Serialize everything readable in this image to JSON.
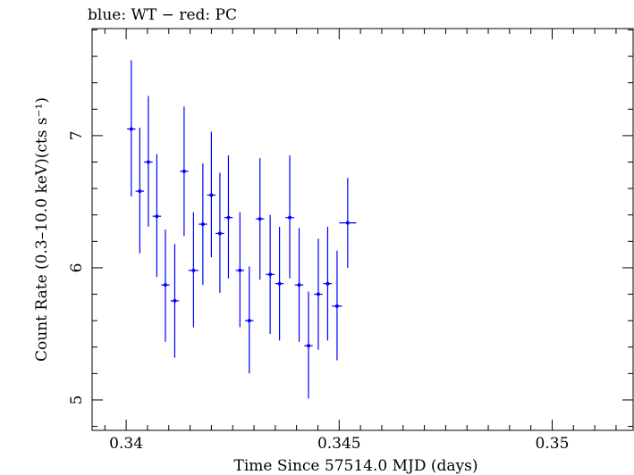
{
  "chart_data": {
    "type": "scatter",
    "title": "blue: WT − red: PC",
    "xlabel": "Time Since 57514.0 MJD (days)",
    "ylabel": "Count Rate (0.3–10.0 keV)(cts s⁻¹)",
    "xlim": [
      0.3392,
      0.3519
    ],
    "ylim": [
      4.77,
      7.81
    ],
    "x_ticks": [
      0.34,
      0.345,
      0.35
    ],
    "x_tick_labels": [
      "0.34",
      "0.345",
      "0.35"
    ],
    "y_ticks": [
      5,
      6,
      7
    ],
    "y_tick_labels": [
      "5",
      "6",
      "7"
    ],
    "grid": false,
    "legend": "none",
    "series": [
      {
        "color": "#0000ff",
        "points": [
          {
            "x": 0.34012,
            "xerr": 0.0001,
            "y": 7.05,
            "ylo": 6.54,
            "yhi": 7.57
          },
          {
            "x": 0.34032,
            "xerr": 0.0001,
            "y": 6.58,
            "ylo": 6.11,
            "yhi": 7.06
          },
          {
            "x": 0.34052,
            "xerr": 0.0001,
            "y": 6.8,
            "ylo": 6.31,
            "yhi": 7.3
          },
          {
            "x": 0.34072,
            "xerr": 0.0001,
            "y": 6.39,
            "ylo": 5.93,
            "yhi": 6.86
          },
          {
            "x": 0.34092,
            "xerr": 0.0001,
            "y": 5.87,
            "ylo": 5.44,
            "yhi": 6.29
          },
          {
            "x": 0.34114,
            "xerr": 0.0001,
            "y": 5.75,
            "ylo": 5.32,
            "yhi": 6.18
          },
          {
            "x": 0.34136,
            "xerr": 0.0001,
            "y": 6.73,
            "ylo": 6.24,
            "yhi": 7.22
          },
          {
            "x": 0.34158,
            "xerr": 0.00012,
            "y": 5.98,
            "ylo": 5.55,
            "yhi": 6.42
          },
          {
            "x": 0.3418,
            "xerr": 0.0001,
            "y": 6.33,
            "ylo": 5.87,
            "yhi": 6.79
          },
          {
            "x": 0.342,
            "xerr": 0.0001,
            "y": 6.55,
            "ylo": 6.08,
            "yhi": 7.03
          },
          {
            "x": 0.3422,
            "xerr": 0.0001,
            "y": 6.26,
            "ylo": 5.81,
            "yhi": 6.72
          },
          {
            "x": 0.3424,
            "xerr": 0.0001,
            "y": 6.38,
            "ylo": 5.92,
            "yhi": 6.85
          },
          {
            "x": 0.34267,
            "xerr": 0.0001,
            "y": 5.98,
            "ylo": 5.55,
            "yhi": 6.42
          },
          {
            "x": 0.34289,
            "xerr": 0.0001,
            "y": 5.6,
            "ylo": 5.2,
            "yhi": 6.01
          },
          {
            "x": 0.34314,
            "xerr": 0.0001,
            "y": 6.37,
            "ylo": 5.91,
            "yhi": 6.83
          },
          {
            "x": 0.34338,
            "xerr": 0.0001,
            "y": 5.95,
            "ylo": 5.5,
            "yhi": 6.4
          },
          {
            "x": 0.3436,
            "xerr": 0.0001,
            "y": 5.88,
            "ylo": 5.45,
            "yhi": 6.31
          },
          {
            "x": 0.34384,
            "xerr": 0.0001,
            "y": 6.38,
            "ylo": 5.92,
            "yhi": 6.85
          },
          {
            "x": 0.34406,
            "xerr": 0.0001,
            "y": 5.87,
            "ylo": 5.44,
            "yhi": 6.3
          },
          {
            "x": 0.34428,
            "xerr": 0.0001,
            "y": 5.41,
            "ylo": 5.01,
            "yhi": 5.82
          },
          {
            "x": 0.34451,
            "xerr": 0.0001,
            "y": 5.8,
            "ylo": 5.38,
            "yhi": 6.22
          },
          {
            "x": 0.34473,
            "xerr": 0.0001,
            "y": 5.88,
            "ylo": 5.45,
            "yhi": 6.31
          },
          {
            "x": 0.34495,
            "xerr": 0.00012,
            "y": 5.71,
            "ylo": 5.3,
            "yhi": 6.13
          },
          {
            "x": 0.3452,
            "xerr": 0.0002,
            "y": 6.34,
            "ylo": 6.0,
            "yhi": 6.68
          }
        ]
      }
    ]
  }
}
